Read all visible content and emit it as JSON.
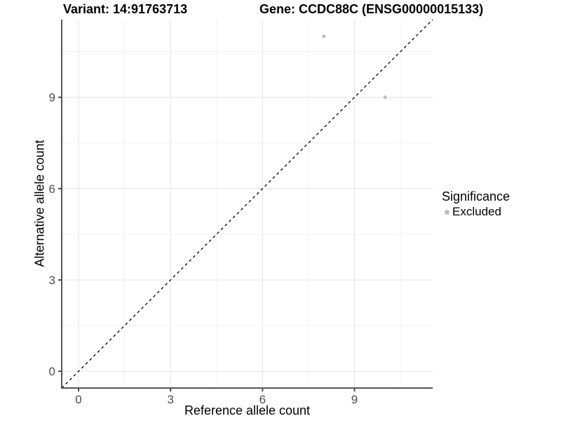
{
  "chart_data": {
    "type": "scatter",
    "title_variant": "Variant: 14:91763713",
    "title_gene": "Gene: CCDC88C (ENSG00000015133)",
    "xlabel": "Reference allele count",
    "ylabel": "Alternative allele count",
    "xlim": [
      -0.55,
      11.55
    ],
    "ylim": [
      -0.55,
      11.55
    ],
    "xticks": [
      0,
      3,
      6,
      9
    ],
    "yticks": [
      0,
      3,
      6,
      9
    ],
    "minor_ticks": [
      1.5,
      4.5,
      7.5,
      10.5
    ],
    "grid": true,
    "legend_position": "right",
    "identity_line": {
      "equation": "y = x",
      "style": "dashed",
      "color": "#000000"
    },
    "series": [
      {
        "name": "Excluded",
        "color": "#bdbdbd",
        "points": [
          {
            "x": 8,
            "y": 11
          },
          {
            "x": 10,
            "y": 9
          }
        ]
      }
    ],
    "legend": {
      "title": "Significance",
      "items": [
        {
          "label": "Excluded",
          "color": "#bdbdbd"
        }
      ]
    },
    "colors": {
      "background": "#ffffff",
      "major_grid": "#e4e4e4",
      "minor_grid": "#f2f2f2",
      "axis_line": "#555555",
      "tick_mark": "#4d4d4d",
      "tick_label": "#4d4d4d",
      "point": "#bdbdbd"
    },
    "tick_label_fontsize_px": 17
  }
}
